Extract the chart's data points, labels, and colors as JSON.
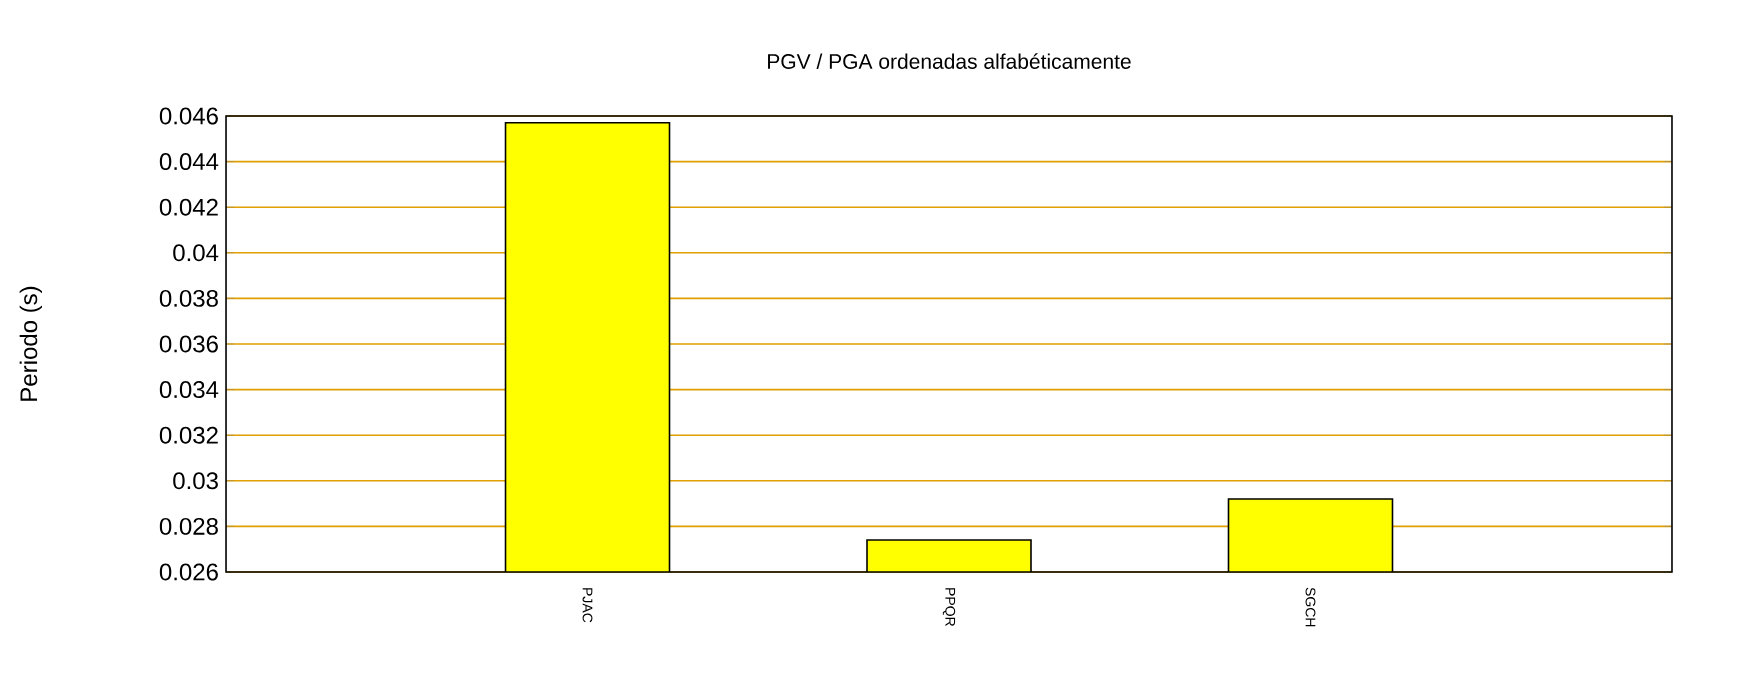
{
  "chart_data": {
    "type": "bar",
    "title": "PGV / PGA ordenadas alfabéticamente",
    "ylabel": "Periodo (s)",
    "categories": [
      "PJAC",
      "PPQR",
      "SGCH"
    ],
    "values": [
      0.0457,
      0.0274,
      0.0292
    ],
    "color": "#ffff00",
    "ylim": [
      0.026,
      0.046
    ],
    "yticks": [
      0.026,
      0.028,
      0.03,
      0.032,
      0.034,
      0.036,
      0.038,
      0.04,
      0.042,
      0.044,
      0.046
    ],
    "grid": "y"
  }
}
